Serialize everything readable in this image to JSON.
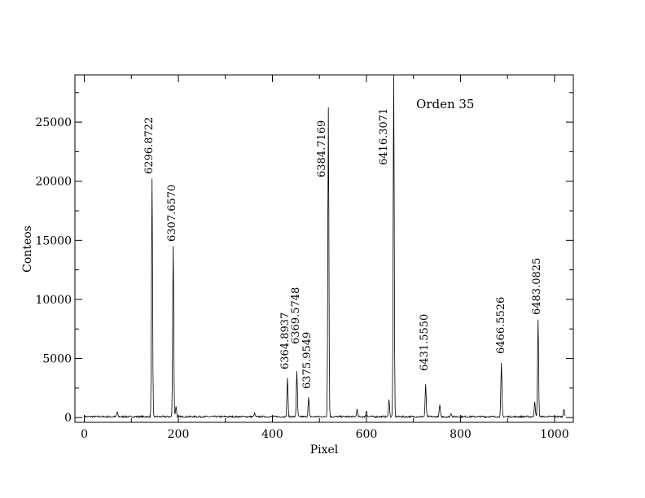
{
  "chart_data": {
    "type": "line",
    "title": "",
    "annotation": "Orden 35",
    "xlabel": "Pixel",
    "ylabel": "Conteos",
    "xlim": [
      -20,
      1040
    ],
    "ylim": [
      -400,
      29000
    ],
    "x_ticks": [
      0,
      200,
      400,
      600,
      800,
      1000
    ],
    "y_ticks": [
      0,
      5000,
      10000,
      15000,
      20000,
      25000
    ],
    "grid": false,
    "line_color": "#000000",
    "peaks": [
      {
        "x": 144,
        "y": 20100,
        "label": "6296.8722"
      },
      {
        "x": 189,
        "y": 14500,
        "label": "6307.6570"
      },
      {
        "x": 432,
        "y": 3300,
        "label": "6364.8937"
      },
      {
        "x": 452,
        "y": 3800,
        "label": "6369.5748"
      },
      {
        "x": 477,
        "y": 1600,
        "label": "6375.9549"
      },
      {
        "x": 519,
        "y": 26200,
        "label": "6384.7169"
      },
      {
        "x": 658,
        "y": 29000,
        "label": "6416.3071"
      },
      {
        "x": 726,
        "y": 2700,
        "label": "6431.5550"
      },
      {
        "x": 887,
        "y": 4500,
        "label": "6466.5526"
      },
      {
        "x": 965,
        "y": 8200,
        "label": "6483.0825"
      }
    ],
    "minor_peaks": [
      {
        "x": 70,
        "y": 400
      },
      {
        "x": 195,
        "y": 900
      },
      {
        "x": 362,
        "y": 300
      },
      {
        "x": 580,
        "y": 600
      },
      {
        "x": 600,
        "y": 500
      },
      {
        "x": 648,
        "y": 1500
      },
      {
        "x": 756,
        "y": 1000
      },
      {
        "x": 780,
        "y": 300
      },
      {
        "x": 958,
        "y": 1300
      },
      {
        "x": 1020,
        "y": 700
      }
    ]
  }
}
